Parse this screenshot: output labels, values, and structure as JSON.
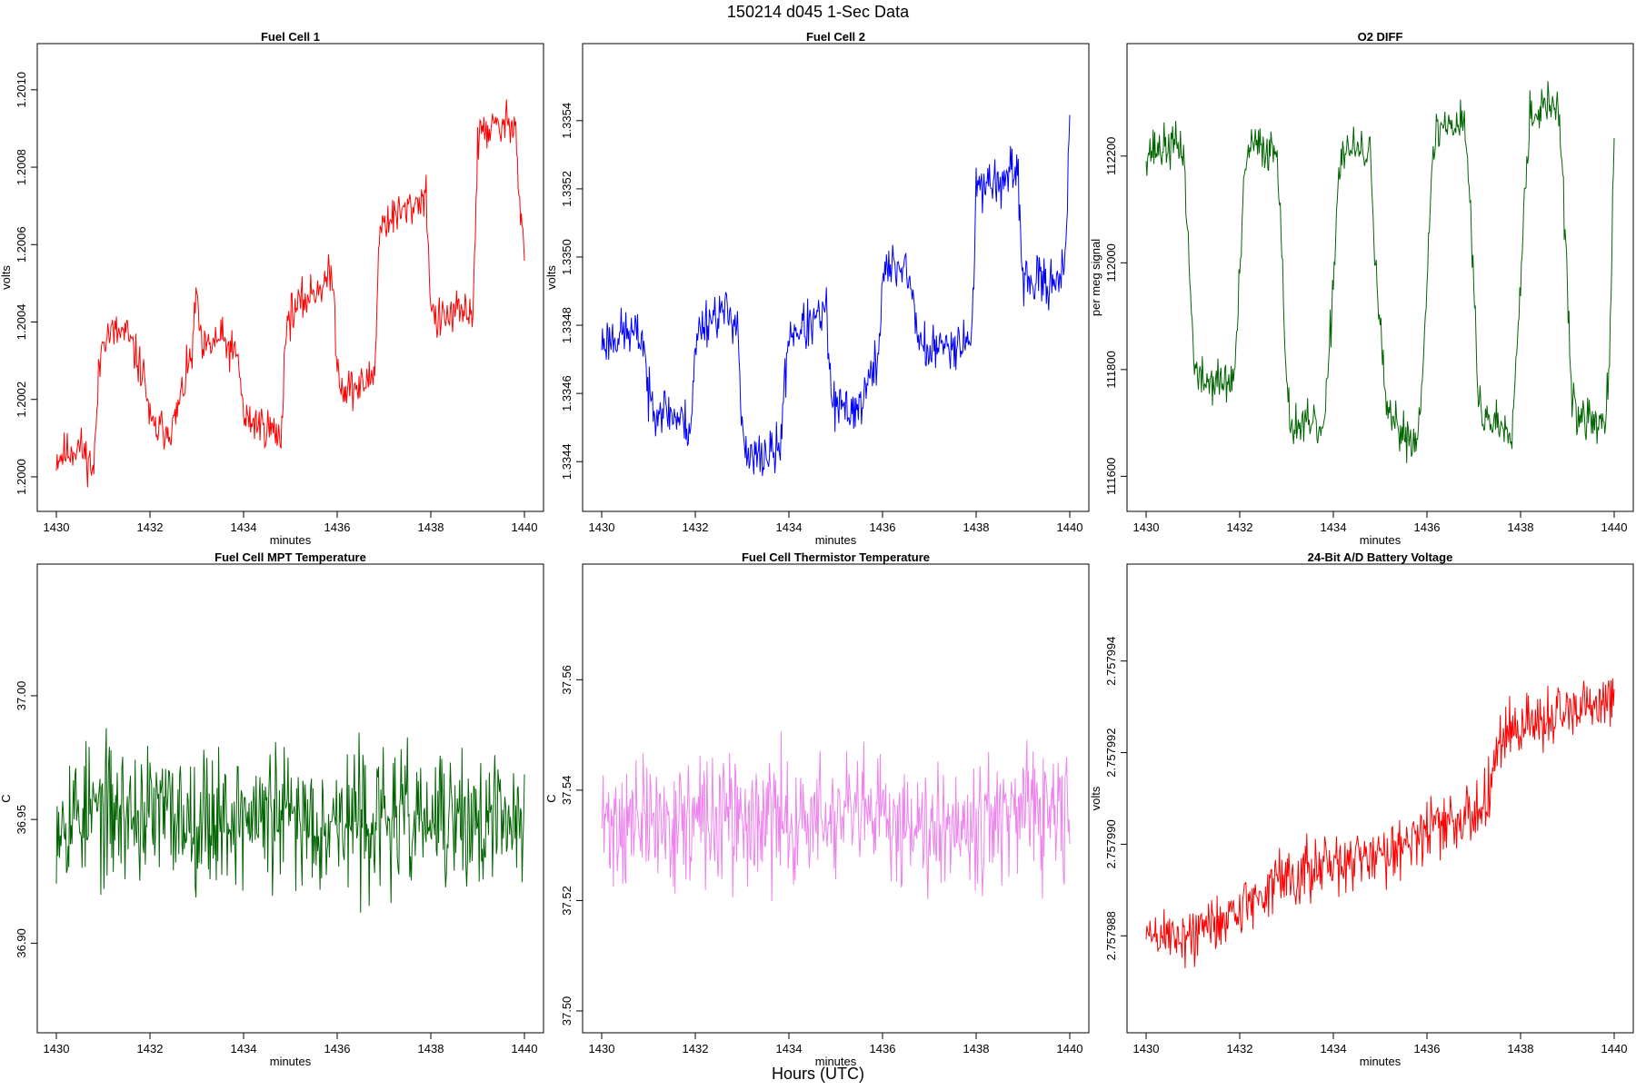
{
  "figure": {
    "title": "150214   d045   1-Sec Data",
    "xlabel": "Hours (UTC)"
  },
  "chart_data": [
    {
      "type": "line",
      "title": "Fuel Cell 1",
      "xlabel": "minutes",
      "ylabel": "volts",
      "color": "#ff0000",
      "xlim": [
        1430,
        1440
      ],
      "ylim": [
        1.19996,
        1.20107
      ],
      "xticks": [
        1430,
        1432,
        1434,
        1436,
        1438,
        1440
      ],
      "yticks": [
        1.2,
        1.2002,
        1.2004,
        1.2006,
        1.2008,
        1.201
      ],
      "ytick_labels": [
        "1.2000",
        "1.2002",
        "1.2004",
        "1.2006",
        "1.2008",
        "1.2010"
      ],
      "x": [
        1430.0,
        1430.5,
        1430.8,
        1430.9,
        1431.0,
        1431.5,
        1431.9,
        1432.0,
        1432.1,
        1432.5,
        1432.9,
        1433.0,
        1433.1,
        1433.5,
        1433.9,
        1434.0,
        1434.5,
        1434.8,
        1434.9,
        1435.0,
        1435.5,
        1435.9,
        1436.0,
        1436.1,
        1436.5,
        1436.8,
        1436.9,
        1437.0,
        1437.5,
        1437.9,
        1438.0,
        1438.1,
        1438.5,
        1438.9,
        1439.0,
        1439.1,
        1439.5,
        1439.8,
        1439.9,
        1440.0
      ],
      "values": [
        1.20005,
        1.20008,
        1.20002,
        1.20025,
        1.20037,
        1.20037,
        1.20025,
        1.20014,
        1.20012,
        1.20013,
        1.20032,
        1.20048,
        1.20032,
        1.20036,
        1.2003,
        1.20015,
        1.20013,
        1.2001,
        1.20038,
        1.20042,
        1.20048,
        1.20052,
        1.2003,
        1.20023,
        1.20023,
        1.20027,
        1.20063,
        1.20066,
        1.20069,
        1.20073,
        1.20045,
        1.2004,
        1.20042,
        1.20043,
        1.20085,
        1.2009,
        1.2009,
        1.20093,
        1.2007,
        1.20059
      ],
      "noise": 4.5e-05,
      "seed": 11
    },
    {
      "type": "line",
      "title": "Fuel Cell 2",
      "xlabel": "minutes",
      "ylabel": "volts",
      "color": "#0000ff",
      "xlim": [
        1430,
        1440
      ],
      "ylim": [
        1.33431,
        1.33557
      ],
      "xticks": [
        1430,
        1432,
        1434,
        1436,
        1438,
        1440
      ],
      "yticks": [
        1.3344,
        1.3346,
        1.3348,
        1.335,
        1.3352,
        1.3354
      ],
      "ytick_labels": [
        "1.3344",
        "1.3346",
        "1.3348",
        "1.3350",
        "1.3352",
        "1.3354"
      ],
      "x": [
        1430.0,
        1430.5,
        1430.9,
        1431.0,
        1431.5,
        1431.9,
        1432.0,
        1432.1,
        1432.5,
        1432.9,
        1433.0,
        1433.1,
        1433.5,
        1433.8,
        1434.0,
        1434.5,
        1434.8,
        1434.9,
        1435.0,
        1435.5,
        1435.9,
        1436.0,
        1436.1,
        1436.5,
        1436.8,
        1437.0,
        1437.5,
        1437.9,
        1438.0,
        1438.1,
        1438.5,
        1438.9,
        1439.0,
        1439.5,
        1439.9,
        1440.0
      ],
      "values": [
        1.33475,
        1.33478,
        1.33476,
        1.33458,
        1.33454,
        1.3345,
        1.33472,
        1.3348,
        1.33484,
        1.33482,
        1.33448,
        1.3344,
        1.33442,
        1.33443,
        1.33478,
        1.3348,
        1.33484,
        1.3346,
        1.33455,
        1.33456,
        1.3347,
        1.33494,
        1.33496,
        1.33498,
        1.33475,
        1.33472,
        1.33475,
        1.33476,
        1.33518,
        1.33522,
        1.33522,
        1.33524,
        1.33493,
        1.33492,
        1.33497,
        1.33537
      ],
      "noise": 6e-05,
      "seed": 23
    },
    {
      "type": "line",
      "title": "O2 DIFF",
      "xlabel": "minutes",
      "ylabel": "per meg signal",
      "color": "#006400",
      "xlim": [
        1430,
        1440
      ],
      "ylim": [
        111570,
        112375
      ],
      "xticks": [
        1430,
        1432,
        1434,
        1436,
        1438,
        1440
      ],
      "yticks": [
        111600,
        111800,
        112000,
        112200
      ],
      "ytick_labels": [
        "111600",
        "111800",
        "112000",
        "112200"
      ],
      "x": [
        1430.0,
        1430.7,
        1430.8,
        1431.0,
        1431.1,
        1431.8,
        1431.9,
        1432.1,
        1432.2,
        1432.8,
        1432.9,
        1433.0,
        1433.1,
        1433.8,
        1433.9,
        1434.1,
        1434.2,
        1434.8,
        1434.9,
        1435.1,
        1435.2,
        1435.8,
        1435.9,
        1436.1,
        1436.2,
        1436.8,
        1436.9,
        1437.1,
        1437.2,
        1437.8,
        1437.9,
        1438.1,
        1438.2,
        1438.8,
        1438.9,
        1439.1,
        1439.2,
        1439.8,
        1439.9,
        1440.0
      ],
      "values": [
        112210,
        112220,
        112210,
        111850,
        111780,
        111775,
        111800,
        112150,
        112220,
        112210,
        112050,
        111750,
        111700,
        111685,
        111800,
        112150,
        112215,
        112200,
        112000,
        111750,
        111700,
        111665,
        111800,
        112150,
        112250,
        112270,
        112150,
        111750,
        111710,
        111690,
        111800,
        112150,
        112280,
        112300,
        112150,
        111750,
        111710,
        111700,
        111800,
        112230
      ],
      "noise": 35,
      "seed": 37
    },
    {
      "type": "line",
      "title": "Fuel Cell MPT Temperature",
      "xlabel": "minutes",
      "ylabel": "C",
      "color": "#006400",
      "xlim": [
        1430,
        1440
      ],
      "ylim": [
        36.8715,
        37.0455
      ],
      "xticks": [
        1430,
        1432,
        1434,
        1436,
        1438,
        1440
      ],
      "yticks": [
        36.9,
        36.95,
        37.0
      ],
      "ytick_labels": [
        "36.90",
        "36.95",
        "37.00"
      ],
      "x": [
        1430.0,
        1440.0
      ],
      "values": [
        36.953,
        36.948
      ],
      "noise": 0.023,
      "seed": 53
    },
    {
      "type": "line",
      "title": "Fuel Cell Thermistor Temperature",
      "xlabel": "minutes",
      "ylabel": "C",
      "color": "#ee82ee",
      "xlim": [
        1430,
        1440
      ],
      "ylim": [
        37.4995,
        37.5775
      ],
      "xticks": [
        1430,
        1432,
        1434,
        1436,
        1438,
        1440
      ],
      "yticks": [
        37.5,
        37.52,
        37.54,
        37.56
      ],
      "ytick_labels": [
        "37.50",
        "37.52",
        "37.54",
        "37.56"
      ],
      "x": [
        1430.0,
        1440.0
      ],
      "values": [
        37.534,
        37.535
      ],
      "noise": 0.0095,
      "seed": 71
    },
    {
      "type": "line",
      "title": "24-Bit A/D Battery Voltage",
      "xlabel": "minutes",
      "ylabel": "volts",
      "color": "#ff0000",
      "xlim": [
        1430,
        1440
      ],
      "ylim": [
        2.7579863,
        2.7579957
      ],
      "xticks": [
        1430,
        1432,
        1434,
        1436,
        1438,
        1440
      ],
      "yticks": [
        2.757988,
        2.75799,
        2.757992,
        2.757994
      ],
      "ytick_labels": [
        "2.757988",
        "2.757990",
        "2.757992",
        "2.757994"
      ],
      "x": [
        1430.0,
        1431.0,
        1432.0,
        1433.0,
        1434.0,
        1435.0,
        1436.0,
        1437.0,
        1437.3,
        1437.5,
        1438.0,
        1439.0,
        1440.0
      ],
      "values": [
        2.757988,
        2.757988,
        2.7579886,
        2.7579893,
        2.7579895,
        2.7579898,
        2.7579903,
        2.7579906,
        2.7579912,
        2.7579922,
        2.7579926,
        2.7579928,
        2.7579931
      ],
      "noise": 5.5e-07,
      "seed": 89
    }
  ]
}
